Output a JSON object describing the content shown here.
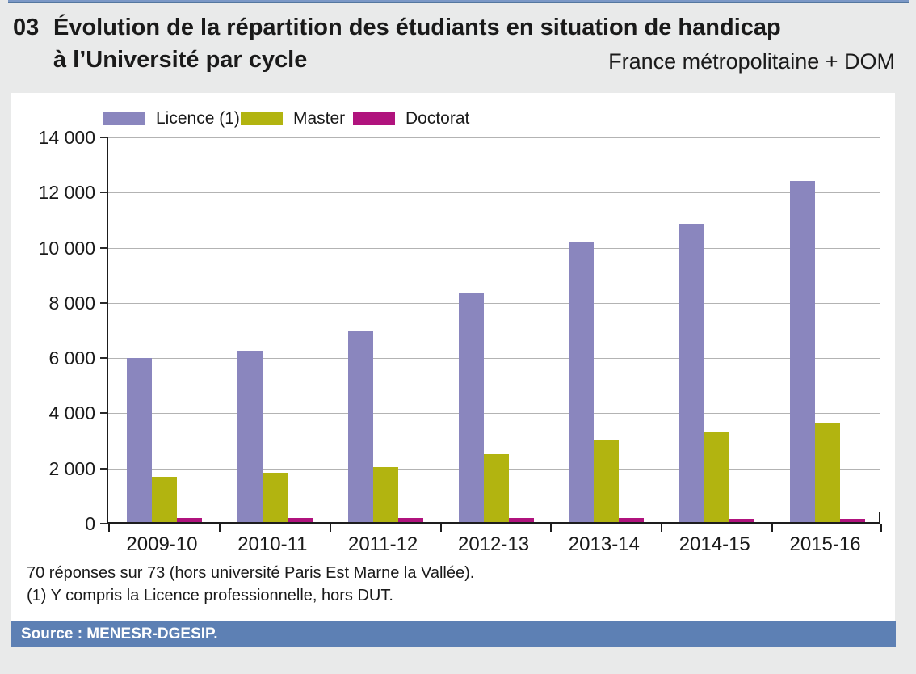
{
  "header": {
    "figure_number": "03",
    "title_line1": "Évolution de la répartition des étudiants en situation de handicap",
    "title_line2": "à l’Université par cycle",
    "scope_label": "France métropolitaine + DOM"
  },
  "notes": {
    "line1": "70 réponses sur 73 (hors université Paris Est Marne la Vallée).",
    "line2": "(1) Y compris la Licence professionnelle, hors DUT."
  },
  "source": {
    "label": "Source : MENESR-DGESIP."
  },
  "colors": {
    "licence": "#8a86be",
    "master": "#b2b410",
    "doctorat": "#b0137d",
    "accent_blue": "#5d80b4",
    "top_strip_blue": "#7b98c6",
    "page_background": "#e9eaea",
    "panel_background": "#ffffff",
    "gridline": "#b3b3b3",
    "axis": "#1d1d1d",
    "text": "#1a1a1a"
  },
  "chart_data": {
    "type": "bar",
    "categories": [
      "2009-10",
      "2010-11",
      "2011-12",
      "2012-13",
      "2013-14",
      "2014-15",
      "2015-16"
    ],
    "series": [
      {
        "name": "Licence (1)",
        "color_key": "licence",
        "values": [
          5950,
          6200,
          6950,
          8300,
          10150,
          10800,
          12350
        ]
      },
      {
        "name": "Master",
        "color_key": "master",
        "values": [
          1650,
          1800,
          2000,
          2450,
          3000,
          3250,
          3600
        ]
      },
      {
        "name": "Doctorat",
        "color_key": "doctorat",
        "values": [
          160,
          150,
          150,
          140,
          140,
          130,
          130
        ]
      }
    ],
    "ylim": [
      0,
      14000
    ],
    "ytick_step": 2000,
    "ytick_labels": [
      "0",
      "2 000",
      "4 000",
      "6 000",
      "8 000",
      "10 000",
      "12 000",
      "14 000"
    ],
    "grid": true,
    "legend_position": "top"
  }
}
